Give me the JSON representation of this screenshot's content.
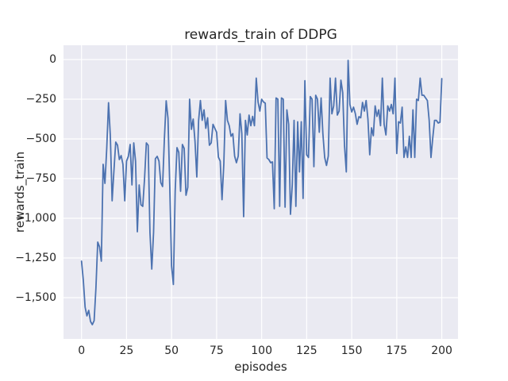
{
  "chart_data": {
    "type": "line",
    "title": "rewards_train of DDPG",
    "xlabel": "episodes",
    "ylabel": "rewards_train",
    "x_ticks": [
      0,
      25,
      50,
      75,
      100,
      125,
      150,
      175,
      200
    ],
    "y_ticks": [
      0,
      -250,
      -500,
      -750,
      -1000,
      -1250,
      -1500
    ],
    "xlim": [
      -10,
      209
    ],
    "ylim": [
      -1760,
      90
    ],
    "grid": true,
    "legend": false,
    "style": "seaborn-darkgrid",
    "plot_bg": "#eaeaf2",
    "grid_color": "#ffffff",
    "line_color": "#4c72b0",
    "text_color": "#262626",
    "series": [
      {
        "name": "rewards_train",
        "x_start": 0,
        "x_step": 1,
        "values": [
          -1270,
          -1390,
          -1560,
          -1615,
          -1580,
          -1650,
          -1670,
          -1645,
          -1440,
          -1150,
          -1180,
          -1270,
          -660,
          -780,
          -560,
          -272,
          -480,
          -890,
          -700,
          -520,
          -540,
          -630,
          -605,
          -660,
          -890,
          -640,
          -610,
          -535,
          -790,
          -525,
          -640,
          -1085,
          -790,
          -915,
          -925,
          -750,
          -525,
          -540,
          -1090,
          -1320,
          -1090,
          -625,
          -610,
          -640,
          -775,
          -800,
          -500,
          -260,
          -370,
          -800,
          -1300,
          -1417,
          -830,
          -555,
          -585,
          -830,
          -535,
          -560,
          -855,
          -805,
          -250,
          -440,
          -375,
          -515,
          -740,
          -385,
          -258,
          -383,
          -317,
          -433,
          -367,
          -540,
          -525,
          -408,
          -433,
          -458,
          -615,
          -640,
          -883,
          -658,
          -258,
          -383,
          -417,
          -483,
          -467,
          -608,
          -650,
          -608,
          -342,
          -467,
          -990,
          -383,
          -475,
          -350,
          -417,
          -358,
          -417,
          -117,
          -267,
          -325,
          -250,
          -267,
          -275,
          -620,
          -630,
          -650,
          -645,
          -940,
          -242,
          -250,
          -925,
          -242,
          -250,
          -930,
          -317,
          -408,
          -975,
          -790,
          -383,
          -925,
          -392,
          -708,
          -392,
          -875,
          -133,
          -600,
          -617,
          -233,
          -250,
          -675,
          -225,
          -250,
          -458,
          -242,
          -467,
          -617,
          -667,
          -608,
          -117,
          -342,
          -292,
          -117,
          -350,
          -325,
          -130,
          -208,
          -542,
          -708,
          -5,
          -283,
          -330,
          -300,
          -340,
          -408,
          -360,
          -367,
          -270,
          -325,
          -258,
          -375,
          -600,
          -430,
          -480,
          -292,
          -358,
          -317,
          -417,
          -117,
          -408,
          -475,
          -292,
          -325,
          -283,
          -342,
          -117,
          -592,
          -392,
          -400,
          -300,
          -617,
          -550,
          -617,
          -483,
          -617,
          -317,
          -617,
          -250,
          -258,
          -117,
          -225,
          -225,
          -242,
          -258,
          -383,
          -617,
          -492,
          -383,
          -383,
          -400,
          -395,
          -120
        ]
      }
    ]
  }
}
